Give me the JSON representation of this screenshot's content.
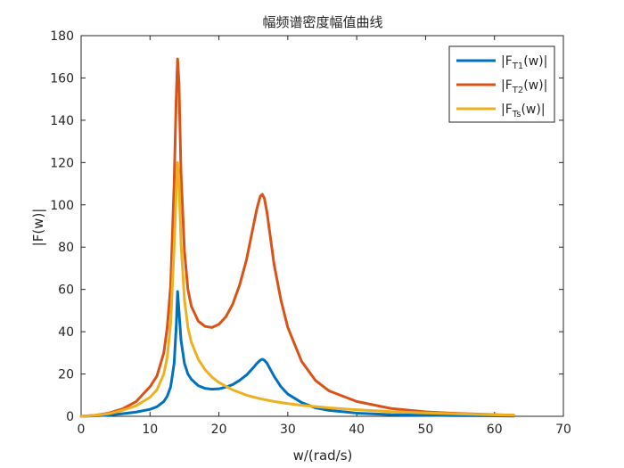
{
  "chart_data": {
    "type": "line",
    "title": "幅频谱密度幅值曲线",
    "xlabel": "w/(rad/s)",
    "ylabel": "|F(w)|",
    "xlim": [
      0,
      70
    ],
    "ylim": [
      0,
      180
    ],
    "xticks": [
      0,
      10,
      20,
      30,
      40,
      50,
      60,
      70
    ],
    "yticks": [
      0,
      20,
      40,
      60,
      80,
      100,
      120,
      140,
      160,
      180
    ],
    "grid": false,
    "legend_position": "top-right",
    "series": [
      {
        "name": "|F_T1(w)|",
        "legend_main": "|F",
        "legend_sub": "T1",
        "legend_end": "(w)|",
        "color": "#0072BD",
        "x": [
          0,
          2,
          4,
          6,
          8,
          10,
          11,
          12,
          12.5,
          13,
          13.5,
          13.8,
          14,
          14.2,
          14.5,
          15,
          15.5,
          16,
          17,
          18,
          19,
          20,
          21,
          22,
          23,
          24,
          25,
          25.5,
          26,
          26.3,
          26.6,
          27,
          27.5,
          28,
          29,
          30,
          32,
          34,
          36,
          40,
          45,
          50,
          55,
          60,
          62.8
        ],
        "y": [
          0,
          0.2,
          0.6,
          1.2,
          2,
          3.3,
          4.5,
          7,
          9.5,
          14,
          25,
          42,
          59,
          50,
          36,
          25,
          20,
          17.5,
          14.5,
          13.2,
          12.8,
          13,
          13.8,
          15,
          17,
          19.5,
          23,
          25,
          26.5,
          27,
          26.5,
          25,
          22,
          19,
          14,
          10.5,
          6.5,
          4,
          2.8,
          1.5,
          0.8,
          0.5,
          0.3,
          0.2,
          0.1
        ]
      },
      {
        "name": "|F_T2(w)|",
        "legend_main": "|F",
        "legend_sub": "T2",
        "legend_end": "(w)|",
        "color": "#D95319",
        "x": [
          0,
          2,
          4,
          6,
          8,
          10,
          11,
          12,
          12.5,
          13,
          13.5,
          13.8,
          14,
          14.2,
          14.5,
          15,
          15.5,
          16,
          17,
          18,
          19,
          20,
          21,
          22,
          23,
          24,
          25,
          25.5,
          26,
          26.3,
          26.6,
          27,
          27.5,
          28,
          29,
          30,
          32,
          34,
          36,
          40,
          45,
          50,
          55,
          60,
          62.8
        ],
        "y": [
          0,
          0.5,
          1.5,
          3.5,
          7,
          14,
          19,
          30,
          42,
          62,
          110,
          150,
          169,
          158,
          115,
          78,
          60,
          52,
          45,
          42.5,
          42,
          43.5,
          47,
          53,
          62,
          74,
          90,
          98,
          104,
          105,
          103,
          96,
          84,
          72,
          55,
          42,
          26,
          17,
          12,
          7,
          3.7,
          2.1,
          1.3,
          0.8,
          0.5
        ]
      },
      {
        "name": "|F_Ts(w)|",
        "legend_main": "|F",
        "legend_sub": "Ts",
        "legend_end": "(w)|",
        "color": "#EDB120",
        "x": [
          0,
          2,
          4,
          6,
          8,
          10,
          11,
          12,
          12.5,
          13,
          13.5,
          13.8,
          14,
          14.2,
          14.5,
          15,
          15.5,
          16,
          17,
          18,
          19,
          20,
          22,
          24,
          26,
          28,
          30,
          32,
          34,
          36,
          40,
          45,
          50,
          55,
          60,
          62.8
        ],
        "y": [
          0,
          0.4,
          1.2,
          2.8,
          5,
          9,
          12.5,
          20,
          28,
          44,
          80,
          106,
          120,
          112,
          82,
          55,
          42,
          35,
          27,
          22,
          18.5,
          16,
          12.5,
          10,
          8.3,
          7,
          6,
          5.2,
          4.6,
          4,
          3.1,
          2.2,
          1.6,
          1.1,
          0.7,
          0.5
        ]
      }
    ]
  }
}
